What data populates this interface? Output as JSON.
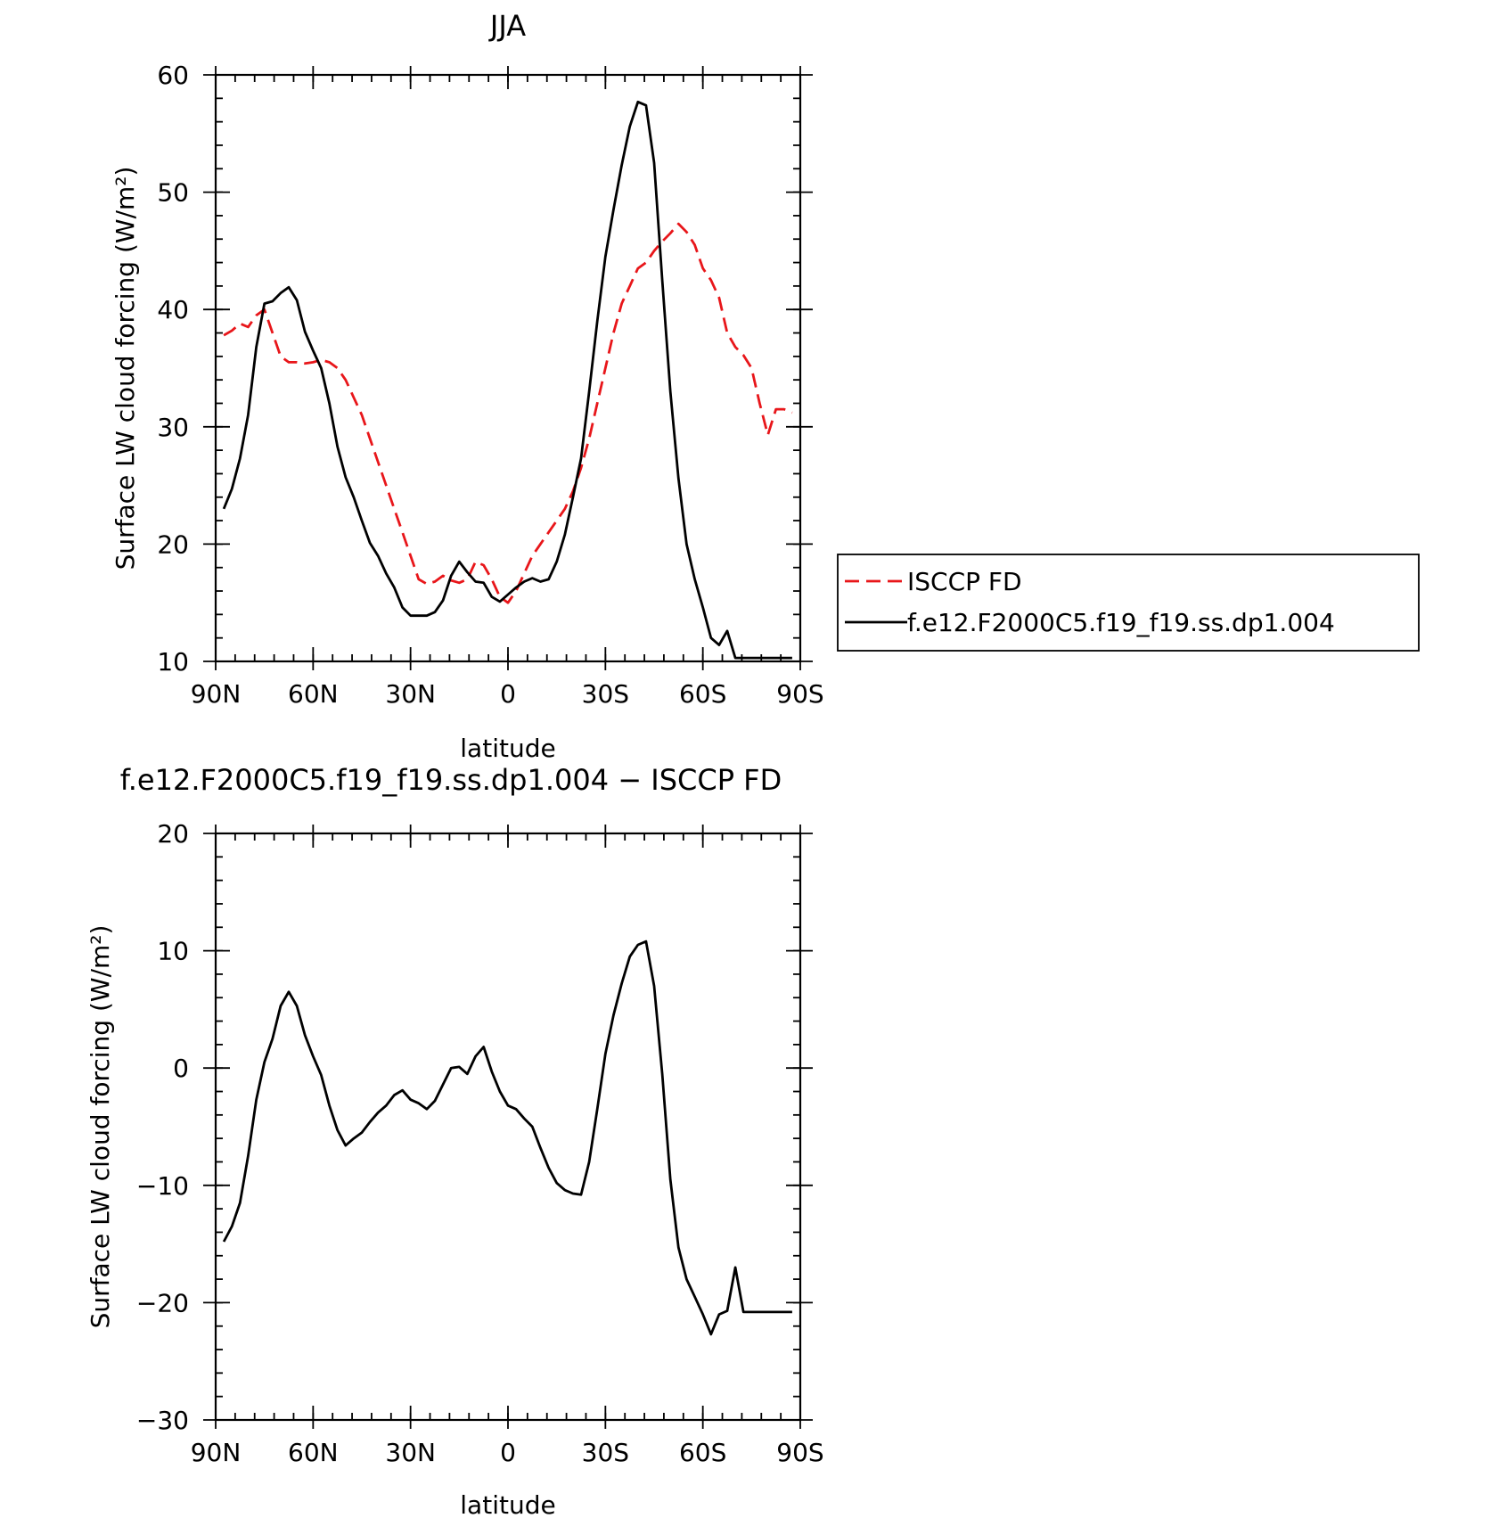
{
  "chart_data": [
    {
      "type": "line",
      "title": "JJA",
      "xlabel": "latitude",
      "ylabel": "Surface LW cloud forcing (W/m²)",
      "xlim": [
        90,
        -90
      ],
      "ylim": [
        10,
        60
      ],
      "xticks": [
        {
          "value": 90,
          "label": "90N"
        },
        {
          "value": 60,
          "label": "60N"
        },
        {
          "value": 30,
          "label": "30N"
        },
        {
          "value": 0,
          "label": "0"
        },
        {
          "value": -30,
          "label": "30S"
        },
        {
          "value": -60,
          "label": "60S"
        },
        {
          "value": -90,
          "label": "90S"
        }
      ],
      "yticks": [
        {
          "value": 10,
          "label": "10"
        },
        {
          "value": 20,
          "label": "20"
        },
        {
          "value": 30,
          "label": "30"
        },
        {
          "value": 40,
          "label": "40"
        },
        {
          "value": 50,
          "label": "50"
        },
        {
          "value": 60,
          "label": "60"
        }
      ],
      "legend_position": "right",
      "series": [
        {
          "name": "ISCCP FD",
          "color": "#e8161a",
          "dash": "dashed",
          "x": [
            87.5,
            85,
            82.5,
            80,
            77.5,
            75,
            72.5,
            70,
            67.5,
            65,
            62.5,
            60,
            57.5,
            55,
            52.5,
            50,
            47.5,
            45,
            42.5,
            40,
            37.5,
            35,
            32.5,
            30,
            27.5,
            25,
            22.5,
            20,
            17.5,
            15,
            12.5,
            10,
            7.5,
            5,
            2.5,
            0,
            -2.5,
            -5,
            -7.5,
            -10,
            -12.5,
            -15,
            -17.5,
            -20,
            -22.5,
            -25,
            -27.5,
            -30,
            -32.5,
            -35,
            -37.5,
            -40,
            -42.5,
            -45,
            -47.5,
            -50,
            -52.5,
            -55,
            -57.5,
            -60,
            -62.5,
            -65,
            -67.5,
            -70,
            -72.5,
            -75,
            -77.5,
            -80,
            -82.5,
            -85,
            -87.5
          ],
          "y": [
            37.8,
            38.2,
            38.8,
            38.5,
            39.5,
            40.0,
            38.0,
            36.0,
            35.5,
            35.5,
            35.4,
            35.5,
            35.7,
            35.5,
            35.0,
            34.0,
            32.5,
            31.0,
            29.0,
            27.0,
            25.0,
            23.0,
            21.0,
            19.0,
            17.0,
            16.6,
            16.8,
            17.3,
            16.9,
            16.7,
            17.0,
            18.5,
            18.2,
            17.0,
            15.5,
            15.0,
            16.0,
            17.5,
            19.0,
            20.0,
            21.0,
            22.0,
            23.0,
            24.5,
            26.5,
            29.0,
            32.0,
            35.0,
            38.0,
            40.5,
            42.0,
            43.5,
            44.0,
            45.0,
            45.8,
            46.5,
            47.3,
            46.6,
            45.5,
            43.5,
            42.5,
            41.0,
            38.0,
            36.8,
            36.1,
            35.0,
            32.0,
            29.3,
            31.5,
            31.5,
            31.2
          ]
        },
        {
          "name": "f.e12.F2000C5.f19_f19.ss.dp1.004",
          "color": "#000000",
          "dash": "solid",
          "x": [
            87.5,
            85,
            82.5,
            80,
            77.5,
            75,
            72.5,
            70,
            67.5,
            65,
            62.5,
            60,
            57.5,
            55,
            52.5,
            50,
            47.5,
            45,
            42.5,
            40,
            37.5,
            35,
            32.5,
            30,
            27.5,
            25,
            22.5,
            20,
            17.5,
            15,
            12.5,
            10,
            7.5,
            5,
            2.5,
            0,
            -2.5,
            -5,
            -7.5,
            -10,
            -12.5,
            -15,
            -17.5,
            -20,
            -22.5,
            -25,
            -27.5,
            -30,
            -32.5,
            -35,
            -37.5,
            -40,
            -42.5,
            -45,
            -47.5,
            -50,
            -52.5,
            -55,
            -57.5,
            -60,
            -62.5,
            -65,
            -67.5,
            -70,
            -72.5,
            -75,
            -77.5,
            -80,
            -82.5,
            -85,
            -87.5
          ],
          "y": [
            23.0,
            24.7,
            27.3,
            31.0,
            36.8,
            40.5,
            40.7,
            41.4,
            41.9,
            40.8,
            38.1,
            36.5,
            35.0,
            32.0,
            28.3,
            25.7,
            24.0,
            22.0,
            20.1,
            19.0,
            17.5,
            16.3,
            14.6,
            13.9,
            13.9,
            13.9,
            14.2,
            15.2,
            17.3,
            18.5,
            17.6,
            16.8,
            16.7,
            15.5,
            15.1,
            15.7,
            16.3,
            16.8,
            17.1,
            16.8,
            17.0,
            18.5,
            20.8,
            24.0,
            27.3,
            33.0,
            39.0,
            44.5,
            48.5,
            52.3,
            55.6,
            57.7,
            57.4,
            52.5,
            42.5,
            33.0,
            25.6,
            20.0,
            17.0,
            14.6,
            12.0,
            11.4,
            12.6,
            10.3,
            10.3,
            10.3,
            10.3,
            10.3,
            10.3,
            10.3,
            10.3
          ]
        }
      ]
    },
    {
      "type": "line",
      "title": "f.e12.F2000C5.f19_f19.ss.dp1.004 − ISCCP FD",
      "xlabel": "latitude",
      "ylabel": "Surface LW cloud forcing (W/m²)",
      "xlim": [
        90,
        -90
      ],
      "ylim": [
        -30,
        20
      ],
      "xticks": [
        {
          "value": 90,
          "label": "90N"
        },
        {
          "value": 60,
          "label": "60N"
        },
        {
          "value": 30,
          "label": "30N"
        },
        {
          "value": 0,
          "label": "0"
        },
        {
          "value": -30,
          "label": "30S"
        },
        {
          "value": -60,
          "label": "60S"
        },
        {
          "value": -90,
          "label": "90S"
        }
      ],
      "yticks": [
        {
          "value": -30,
          "label": "−30"
        },
        {
          "value": -20,
          "label": "−20"
        },
        {
          "value": -10,
          "label": "−10"
        },
        {
          "value": 0,
          "label": "0"
        },
        {
          "value": 10,
          "label": "10"
        },
        {
          "value": 20,
          "label": "20"
        }
      ],
      "series": [
        {
          "color": "#000000",
          "dash": "solid",
          "x": [
            87.5,
            85,
            82.5,
            80,
            77.5,
            75,
            72.5,
            70,
            67.5,
            65,
            62.5,
            60,
            57.5,
            55,
            52.5,
            50,
            47.5,
            45,
            42.5,
            40,
            37.5,
            35,
            32.5,
            30,
            27.5,
            25,
            22.5,
            20,
            17.5,
            15,
            12.5,
            10,
            7.5,
            5,
            2.5,
            0,
            -2.5,
            -5,
            -7.5,
            -10,
            -12.5,
            -15,
            -17.5,
            -20,
            -22.5,
            -25,
            -27.5,
            -30,
            -32.5,
            -35,
            -37.5,
            -40,
            -42.5,
            -45,
            -47.5,
            -50,
            -52.5,
            -55,
            -57.5,
            -60,
            -62.5,
            -65,
            -67.5,
            -70,
            -72.5,
            -75,
            -77.5,
            -80,
            -82.5,
            -85,
            -87.5
          ],
          "y": [
            -14.8,
            -13.5,
            -11.5,
            -7.5,
            -2.7,
            0.5,
            2.5,
            5.3,
            6.5,
            5.3,
            2.8,
            1.0,
            -0.6,
            -3.2,
            -5.3,
            -6.6,
            -6.0,
            -5.5,
            -4.6,
            -3.8,
            -3.2,
            -2.3,
            -1.9,
            -2.7,
            -3.0,
            -3.5,
            -2.8,
            -1.4,
            0.0,
            0.1,
            -0.5,
            1.0,
            1.8,
            -0.3,
            -2.0,
            -3.2,
            -3.5,
            -4.3,
            -5.0,
            -6.8,
            -8.5,
            -9.8,
            -10.4,
            -10.7,
            -10.8,
            -8.0,
            -3.5,
            1.2,
            4.5,
            7.2,
            9.5,
            10.5,
            10.8,
            7.0,
            -0.5,
            -9.5,
            -15.3,
            -18.0,
            -19.5,
            -21.0,
            -22.7,
            -21.0,
            -20.7,
            -17.0,
            -20.8,
            -20.8,
            -20.8,
            -20.8,
            -20.8,
            -20.8,
            -20.8
          ]
        }
      ]
    }
  ]
}
